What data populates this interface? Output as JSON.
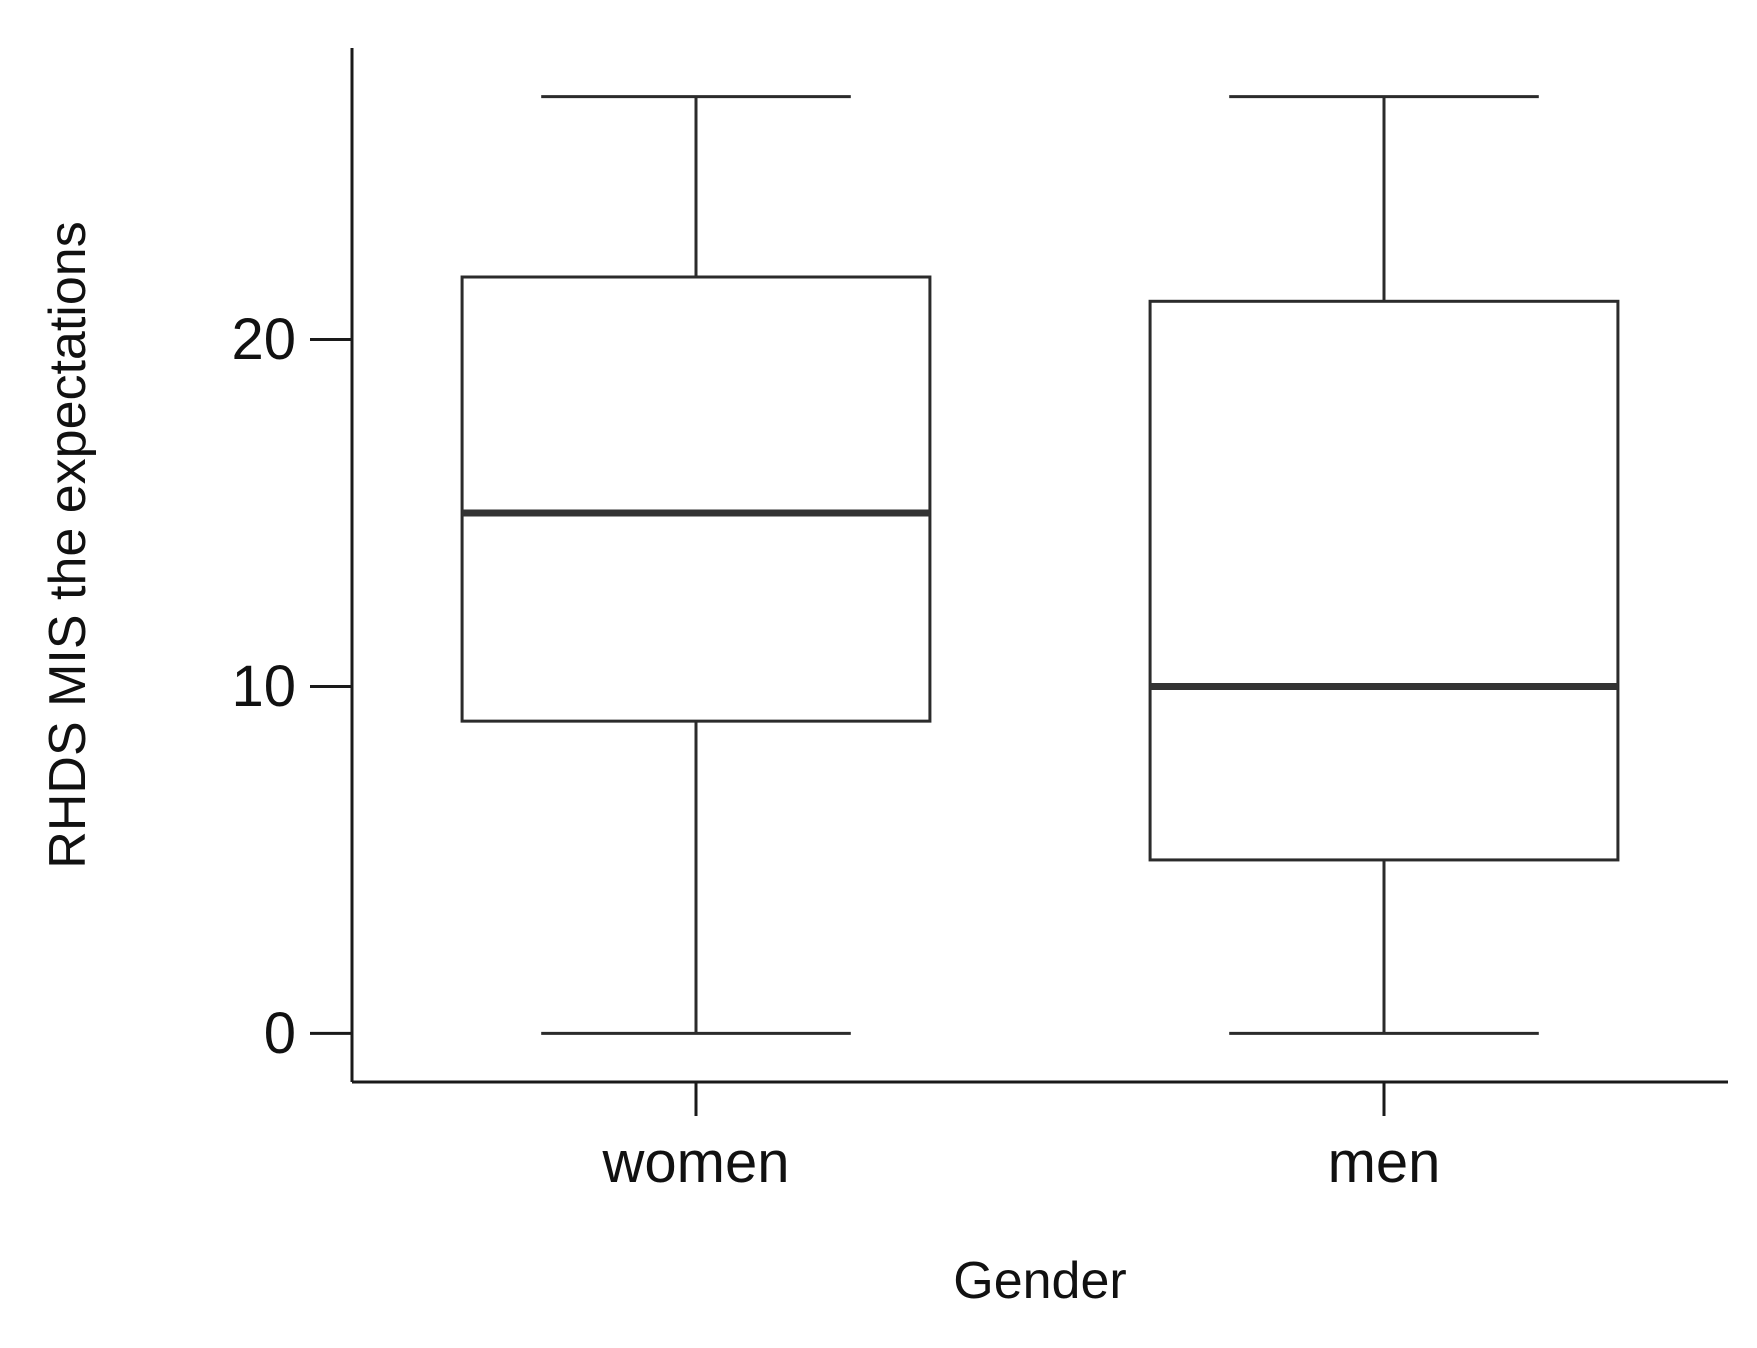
{
  "chart_data": {
    "type": "boxplot",
    "title": "",
    "xlabel": "Gender",
    "ylabel": "RHDS MIS the expectations",
    "ylim": [
      -1.4,
      28.4
    ],
    "yticks": [
      0,
      10,
      20
    ],
    "ytick_labels": [
      "0",
      "10",
      "20"
    ],
    "categories": [
      "women",
      "men"
    ],
    "boxes": [
      {
        "category": "women",
        "whisker_low": 0,
        "q1": 9,
        "median": 15,
        "q3": 21.8,
        "whisker_high": 27
      },
      {
        "category": "men",
        "whisker_low": 0,
        "q1": 5,
        "median": 10,
        "q3": 21.1,
        "whisker_high": 27
      }
    ],
    "grid": false,
    "legend": "none",
    "colors": {
      "axis": "#1a1a1a",
      "box_edge": "#2b2b2b",
      "box_fill": "#ffffff",
      "median": "#333333"
    }
  }
}
